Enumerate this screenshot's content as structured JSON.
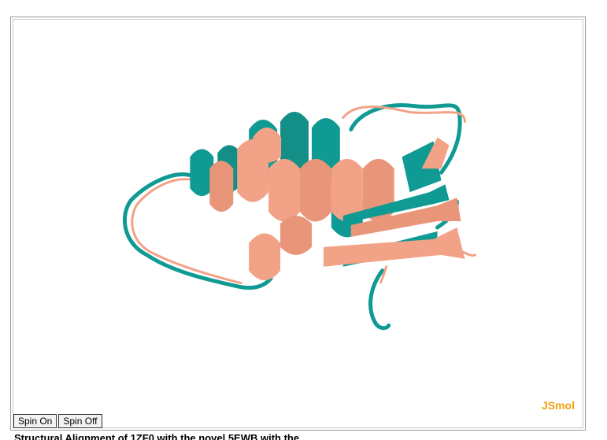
{
  "viewer": {
    "logo": "JSmol",
    "structure_colors": {
      "model_a": "#0f9a93",
      "model_b": "#f2a286"
    }
  },
  "controls": {
    "spin_on_label": "Spin On",
    "spin_off_label": "Spin Off"
  },
  "caption": {
    "text": "Structural Alignment of 1ZF0 with the novel 5EWB with the..."
  }
}
